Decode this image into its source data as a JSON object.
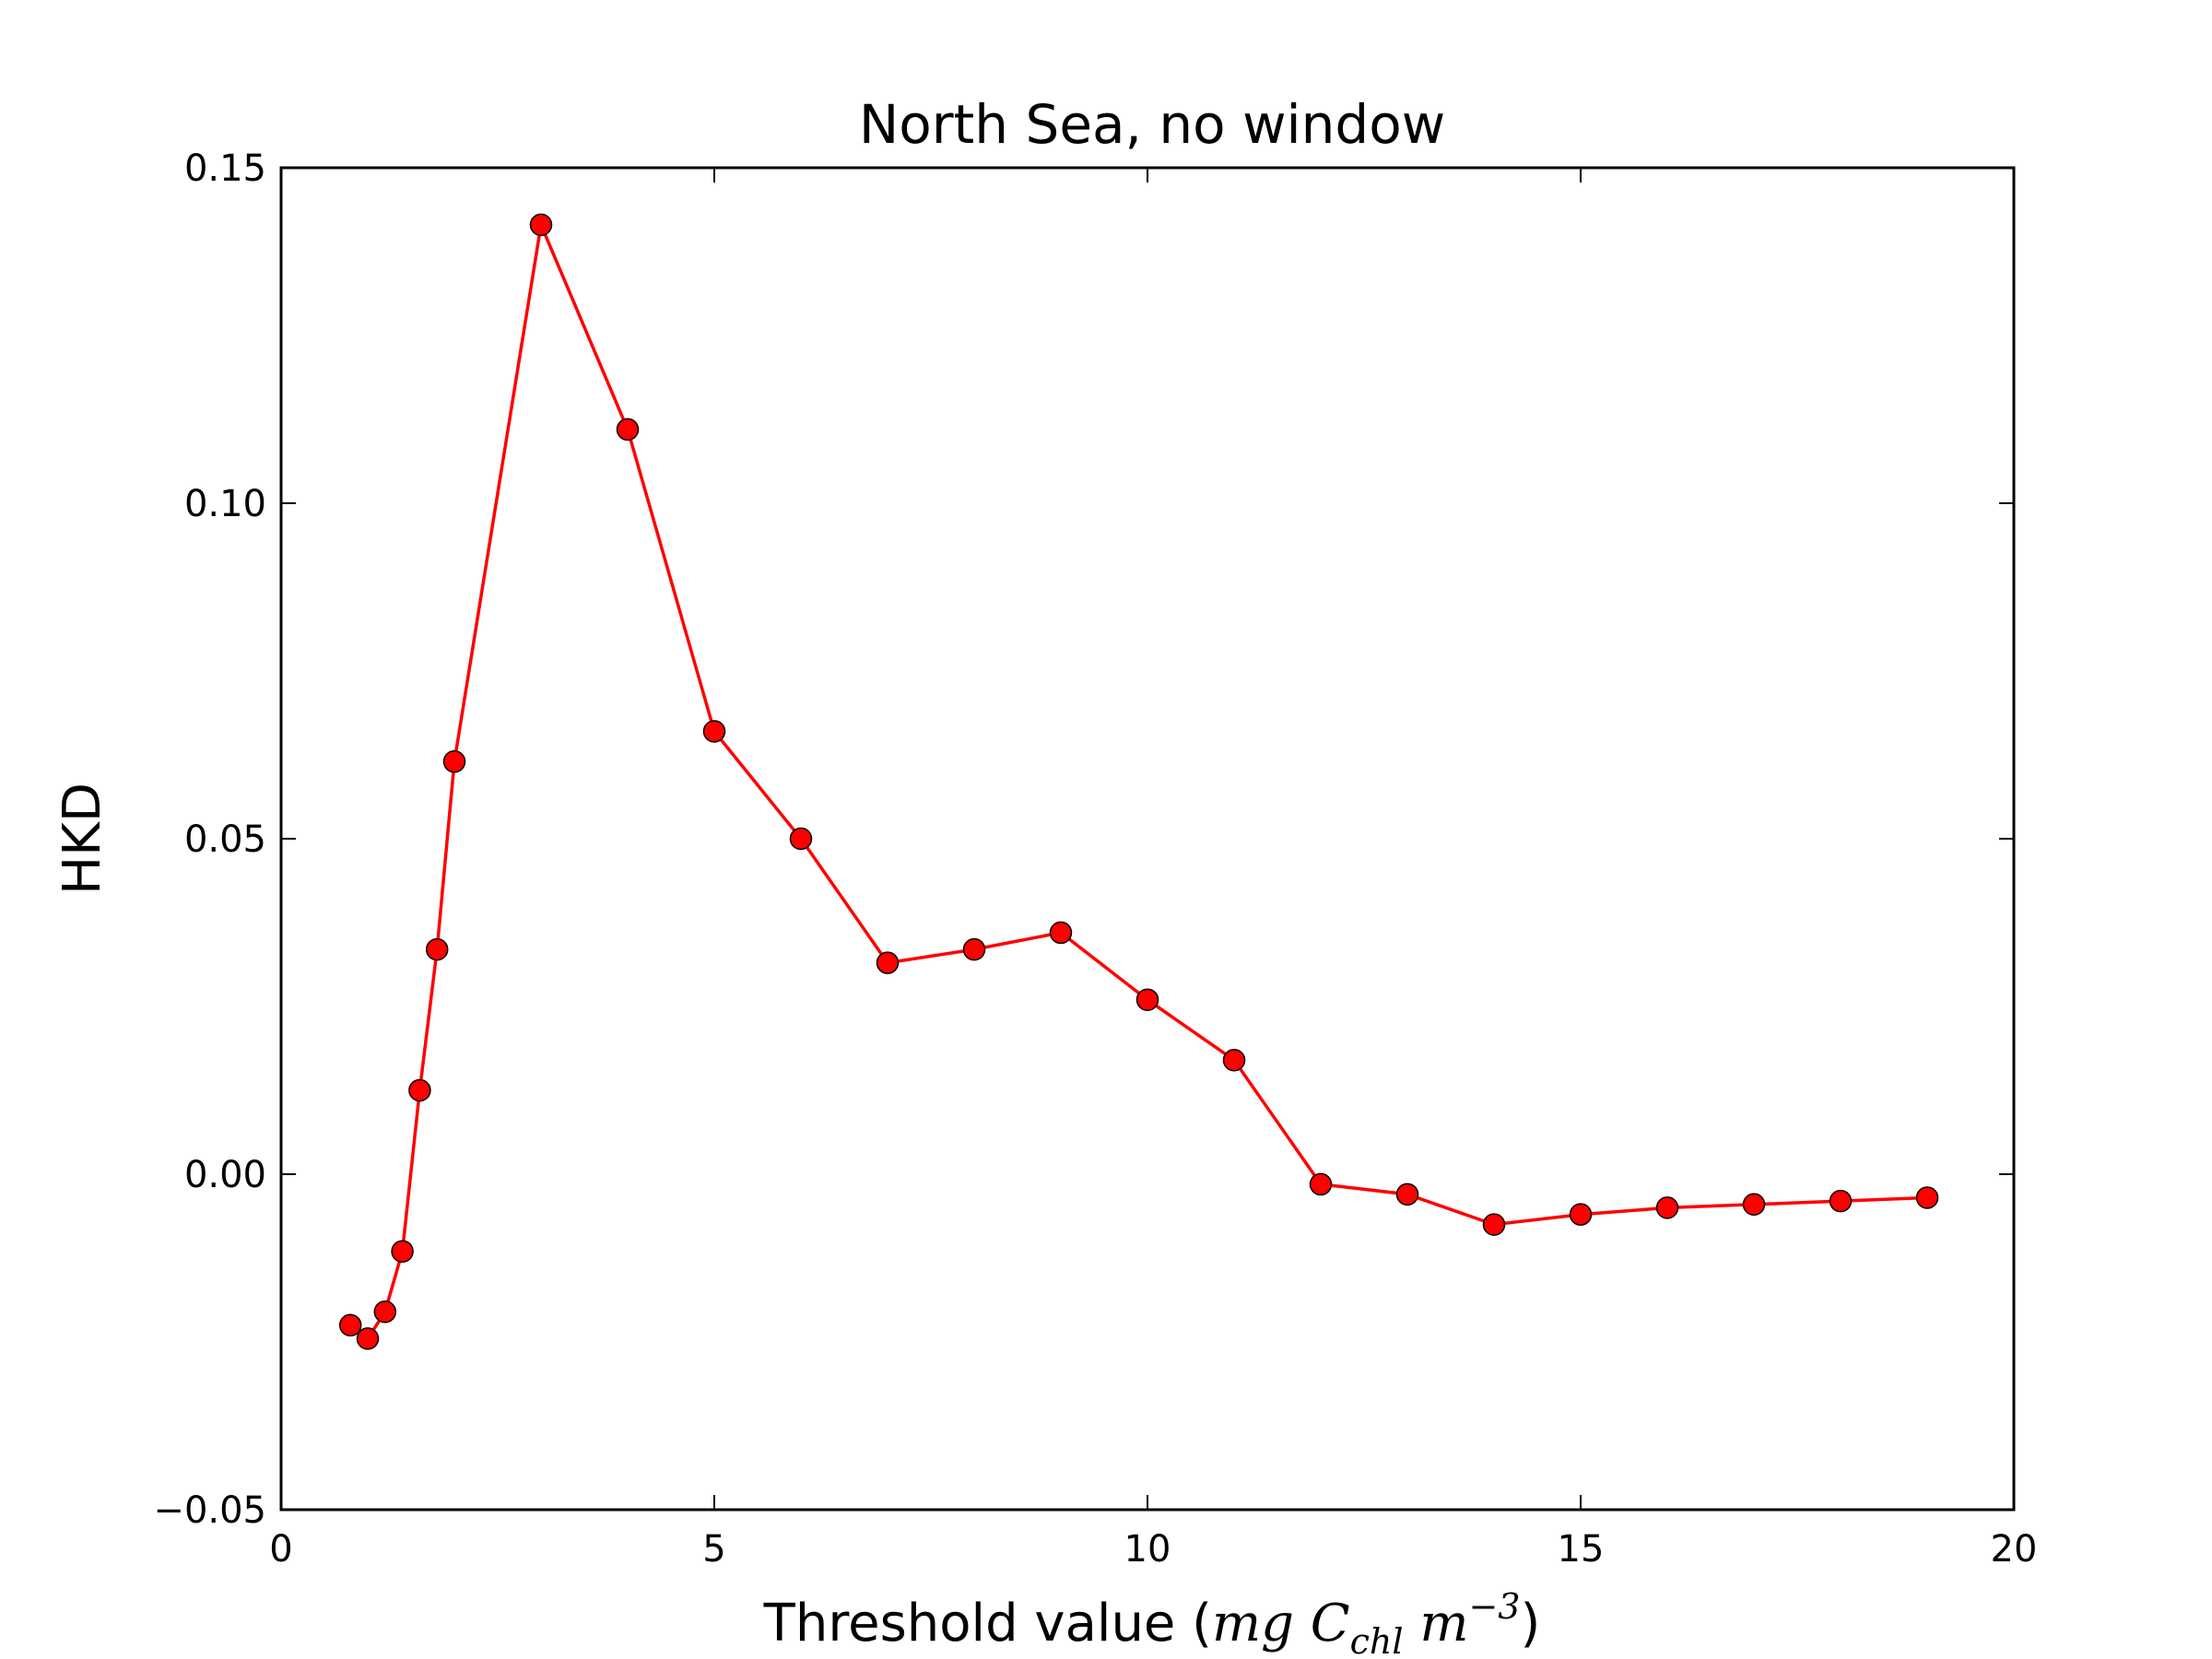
{
  "chart_data": {
    "type": "line",
    "title": "North Sea, no window",
    "xlabel": "Threshold value (",
    "xlabel_math": "mg C",
    "xlabel_sub": "chl",
    "xlabel_math2": " m",
    "xlabel_sup": "−3",
    "xlabel_close": ")",
    "ylabel": "HKD",
    "xlim": [
      0,
      20
    ],
    "ylim": [
      -0.05,
      0.15
    ],
    "xticks": [
      0,
      5,
      10,
      15,
      20
    ],
    "xtick_labels": [
      "0",
      "5",
      "10",
      "15",
      "20"
    ],
    "yticks": [
      -0.05,
      0.0,
      0.05,
      0.1,
      0.15
    ],
    "ytick_labels": [
      "−0.05",
      "0.00",
      "0.05",
      "0.10",
      "0.15"
    ],
    "grid": false,
    "series": [
      {
        "color": "#ff0000",
        "marker_color": "#ff0000",
        "x": [
          0.8,
          1.0,
          1.2,
          1.4,
          1.6,
          1.8,
          2.0,
          3.0,
          4.0,
          5.0,
          6.0,
          7.0,
          8.0,
          9.0,
          10.0,
          11.0,
          12.0,
          13.0,
          14.0,
          15.0,
          16.0,
          17.0,
          18.0,
          19.0
        ],
        "y": [
          -0.0225,
          -0.0245,
          -0.0205,
          -0.0115,
          0.0125,
          0.0335,
          0.0615,
          0.1415,
          0.111,
          0.066,
          0.05,
          0.0315,
          0.0335,
          0.036,
          0.026,
          0.017,
          -0.0015,
          -0.003,
          -0.0075,
          -0.006,
          -0.005,
          -0.0045,
          -0.004,
          -0.0035
        ]
      }
    ]
  }
}
